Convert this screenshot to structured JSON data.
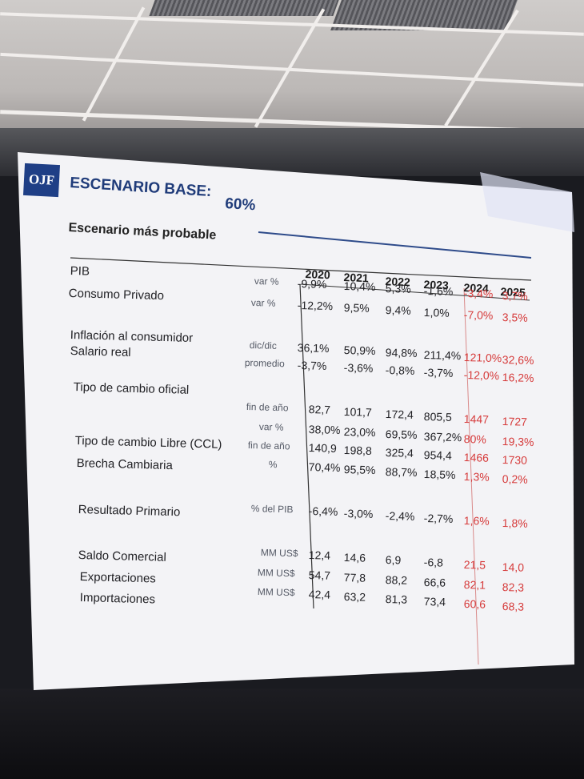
{
  "slide": {
    "logo": "OJF",
    "title": "ESCENARIO BASE:",
    "percent": "60%",
    "subtitle": "Escenario más probable"
  },
  "years": [
    "2020",
    "2021",
    "2022",
    "2023",
    "2024",
    "2025"
  ],
  "rows": [
    {
      "label": "PIB",
      "unit": "var %",
      "values": [
        "-9,9%",
        "10,4%",
        "5,3%",
        "-1,6%",
        "-3,4%",
        "3,7%"
      ]
    },
    {
      "label": "Consumo Privado",
      "unit": "var %",
      "values": [
        "-12,2%",
        "9,5%",
        "9,4%",
        "1,0%",
        "-7,0%",
        "3,5%"
      ]
    },
    {
      "label": "Inflación al consumidor",
      "unit": "dic/dic",
      "values": [
        "36,1%",
        "50,9%",
        "94,8%",
        "211,4%",
        "121,0%",
        "32,6%"
      ]
    },
    {
      "label": "Salario real",
      "unit": "promedio",
      "values": [
        "-3,7%",
        "-3,6%",
        "-0,8%",
        "-3,7%",
        "-12,0%",
        "16,2%"
      ]
    },
    {
      "label": "Tipo de cambio oficial",
      "unit": "",
      "values": [
        "",
        "",
        "",
        "",
        "",
        ""
      ]
    },
    {
      "label": "",
      "unit": "fin de año",
      "values": [
        "82,7",
        "101,7",
        "172,4",
        "805,5",
        "1447",
        "1727"
      ]
    },
    {
      "label": "",
      "unit": "var %",
      "values": [
        "38,0%",
        "23,0%",
        "69,5%",
        "367,2%",
        "80%",
        "19,3%"
      ]
    },
    {
      "label": "Tipo de cambio Libre (CCL)",
      "unit": "fin de año",
      "values": [
        "140,9",
        "198,8",
        "325,4",
        "954,4",
        "1466",
        "1730"
      ]
    },
    {
      "label": "Brecha Cambiaria",
      "unit": "%",
      "values": [
        "70,4%",
        "95,5%",
        "88,7%",
        "18,5%",
        "1,3%",
        "0,2%"
      ]
    },
    {
      "label": "Resultado Primario",
      "unit": "% del PIB",
      "values": [
        "-6,4%",
        "-3,0%",
        "-2,4%",
        "-2,7%",
        "1,6%",
        "1,8%"
      ]
    },
    {
      "label": "Saldo Comercial",
      "unit": "MM US$",
      "values": [
        "12,4",
        "14,6",
        "6,9",
        "-6,8",
        "21,5",
        "14,0"
      ]
    },
    {
      "label": "Exportaciones",
      "unit": "MM US$",
      "values": [
        "54,7",
        "77,8",
        "88,2",
        "66,6",
        "82,1",
        "82,3"
      ]
    },
    {
      "label": "Importaciones",
      "unit": "MM US$",
      "values": [
        "42,4",
        "63,2",
        "81,3",
        "73,4",
        "60,6",
        "68,3"
      ]
    }
  ],
  "colors": {
    "accent": "#203c7a",
    "projection": "#d63a3a",
    "slide": "#f4f4f6"
  }
}
